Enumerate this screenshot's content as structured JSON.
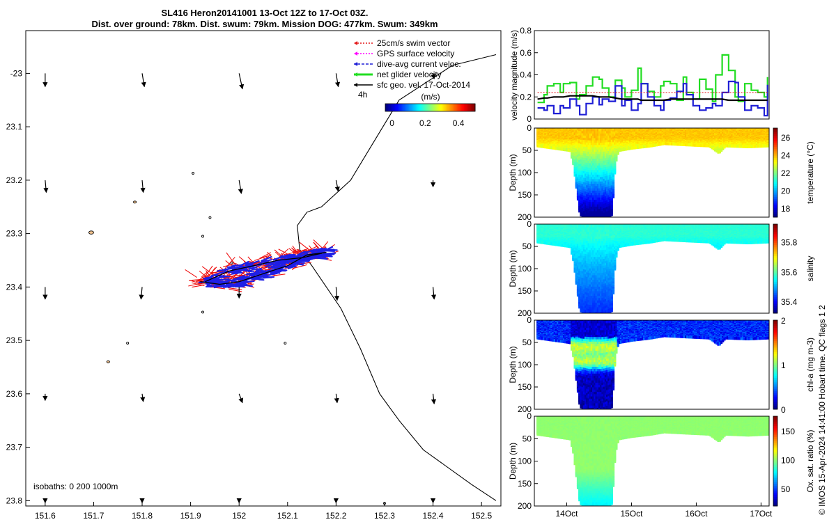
{
  "title": {
    "line1": "SL416 Heron20141001 13-Oct 12Z to 17-Oct 03Z.",
    "line2": "Dist. over ground: 78km. Dist. swum: 79km. Mission DOG: 477km. Swum: 349km"
  },
  "credit": "© IMOS 15-Apr-2024 14:41:00 Hobart time. QC flags 1  2",
  "chart_data": [
    {
      "type": "map",
      "name": "glider-track-map",
      "x_ticks": [
        "151.6",
        "151.7",
        "151.8",
        "151.9",
        "152",
        "152.1",
        "152.2",
        "152.3",
        "152.4",
        "152.5"
      ],
      "x_values": [
        151.6,
        151.7,
        151.8,
        151.9,
        152.0,
        152.1,
        152.2,
        152.3,
        152.4,
        152.5
      ],
      "y_ticks": [
        "-23",
        "23.1",
        "23.2",
        "23.3",
        "23.4",
        "23.5",
        "23.6",
        "23.7",
        "23.8"
      ],
      "y_values": [
        -23.0,
        -23.1,
        -23.2,
        -23.3,
        -23.4,
        -23.5,
        -23.6,
        -23.7,
        -23.8
      ],
      "xlim": [
        151.56,
        152.54
      ],
      "ylim": [
        -23.81,
        -22.92
      ],
      "legend": [
        {
          "label": "25cm/s swim vector",
          "color": "#e41a1c",
          "style": "dotted"
        },
        {
          "label": "GPS surface velocity",
          "color": "#ff00ff",
          "style": "dotted"
        },
        {
          "label": "dive-avg current veloc.",
          "color": "#1f1fd6",
          "style": "dashed"
        },
        {
          "label": "net glider velocity",
          "color": "#22dd22",
          "style": "solid"
        },
        {
          "label": "sfc geo. vel. 17-Oct-2014",
          "color": "#000000",
          "style": "solid"
        }
      ],
      "scale_label": "4h",
      "colorbar": {
        "label": "(m/s)",
        "ticks": [
          "0",
          "0.2",
          "0.4"
        ],
        "tick_values": [
          0,
          0.2,
          0.4
        ],
        "range": [
          -0.04,
          0.5
        ]
      },
      "isobath_label": "isobaths: 0   200  1000m",
      "isobath_1000m": [
        [
          152.53,
          -22.965
        ],
        [
          152.44,
          -22.985
        ],
        [
          152.33,
          -23.05
        ],
        [
          152.29,
          -23.11
        ],
        [
          152.23,
          -23.2
        ],
        [
          152.17,
          -23.25
        ],
        [
          152.14,
          -23.26
        ],
        [
          152.12,
          -23.285
        ],
        [
          152.125,
          -23.33
        ],
        [
          152.15,
          -23.36
        ],
        [
          152.21,
          -23.44
        ],
        [
          152.25,
          -23.515
        ],
        [
          152.29,
          -23.6
        ],
        [
          152.33,
          -23.65
        ],
        [
          152.38,
          -23.705
        ],
        [
          152.48,
          -23.77
        ],
        [
          152.53,
          -23.8
        ]
      ],
      "geo_vectors": {
        "lon": [
          151.6,
          151.8,
          152.0,
          152.2,
          152.4
        ],
        "lat": [
          -23.0,
          -23.2,
          -23.4,
          -23.6,
          -23.8
        ],
        "u": [
          [
            0,
            0.02,
            0.03,
            0.02,
            0.01
          ],
          [
            0.01,
            0.01,
            0.02,
            0.02,
            0
          ],
          [
            0,
            -0.01,
            0,
            0.01,
            0.01
          ],
          [
            0,
            0.01,
            0.03,
            0.01,
            0.01
          ],
          [
            0,
            0,
            0,
            0,
            0
          ]
        ],
        "v": [
          [
            -0.12,
            -0.12,
            -0.14,
            -0.12,
            -0.05
          ],
          [
            -0.11,
            -0.11,
            -0.12,
            -0.1,
            -0.06
          ],
          [
            -0.11,
            -0.11,
            -0.1,
            -0.12,
            -0.11
          ],
          [
            -0.06,
            -0.07,
            -0.08,
            -0.08,
            -0.09
          ],
          [
            -0.02,
            -0.02,
            -0.02,
            -0.02,
            -0.02
          ]
        ]
      },
      "track": [
        [
          151.93,
          -23.39
        ],
        [
          151.98,
          -23.37
        ],
        [
          152.03,
          -23.36
        ],
        [
          152.08,
          -23.35
        ],
        [
          152.13,
          -23.345
        ],
        [
          152.18,
          -23.335
        ],
        [
          152.14,
          -23.34
        ],
        [
          152.1,
          -23.36
        ],
        [
          152.05,
          -23.375
        ],
        [
          152.0,
          -23.39
        ],
        [
          151.96,
          -23.395
        ],
        [
          151.92,
          -23.39
        ]
      ],
      "islands": [
        {
          "lon": 151.695,
          "lat": -23.298,
          "rx": 0.005,
          "ry": 0.003,
          "fill": "#f2c28e"
        },
        {
          "lon": 151.785,
          "lat": -23.241,
          "rx": 0.003,
          "ry": 0.002,
          "fill": "#f2c28e"
        },
        {
          "lon": 151.73,
          "lat": -23.54,
          "rx": 0.003,
          "ry": 0.002,
          "fill": "#f2c28e"
        },
        {
          "lon": 151.905,
          "lat": -23.187,
          "rx": 0.0008,
          "ry": 0.0008,
          "fill": "none"
        },
        {
          "lon": 151.94,
          "lat": -23.27,
          "rx": 0.001,
          "ry": 0.0012,
          "fill": "none"
        },
        {
          "lon": 151.925,
          "lat": -23.305,
          "rx": 0.001,
          "ry": 0.001,
          "fill": "none"
        },
        {
          "lon": 151.985,
          "lat": -23.355,
          "rx": 0.002,
          "ry": 0.0015,
          "fill": "none"
        },
        {
          "lon": 151.925,
          "lat": -23.447,
          "rx": 0.002,
          "ry": 0.0015,
          "fill": "none"
        },
        {
          "lon": 151.77,
          "lat": -23.505,
          "rx": 0.001,
          "ry": 0.001,
          "fill": "none"
        },
        {
          "lon": 152.095,
          "lat": -23.505,
          "rx": 0.001,
          "ry": 0.0015,
          "fill": "none"
        },
        {
          "lon": 152.3,
          "lat": -23.805,
          "rx": 0.002,
          "ry": 0.0015,
          "fill": "none"
        }
      ]
    },
    {
      "type": "line",
      "name": "velocity-magnitude",
      "ylabel": "velocity magnitude (m/s)",
      "ylim": [
        0,
        0.8
      ],
      "y_ticks": [
        "0",
        "0.2",
        "0.4",
        "0.6",
        "0.8"
      ],
      "y_tick_values": [
        0,
        0.2,
        0.4,
        0.6,
        0.8
      ],
      "xlim": [
        13.5,
        17.125
      ],
      "x": [
        13.55,
        13.65,
        13.7,
        13.8,
        13.9,
        13.95,
        14.05,
        14.15,
        14.2,
        14.3,
        14.4,
        14.5,
        14.55,
        14.65,
        14.75,
        14.85,
        14.9,
        15.0,
        15.1,
        15.15,
        15.25,
        15.35,
        15.45,
        15.5,
        15.6,
        15.7,
        15.8,
        15.85,
        15.95,
        16.05,
        16.15,
        16.25,
        16.3,
        16.4,
        16.5,
        16.6,
        16.65,
        16.75,
        16.85,
        16.95,
        17.05,
        17.1
      ],
      "series": [
        {
          "name": "net glider velocity",
          "color": "#22dd22",
          "values": [
            0.15,
            0.22,
            0.3,
            0.32,
            0.24,
            0.32,
            0.33,
            0.18,
            0.22,
            0.3,
            0.38,
            0.36,
            0.28,
            0.2,
            0.35,
            0.28,
            0.2,
            0.26,
            0.46,
            0.32,
            0.25,
            0.2,
            0.3,
            0.34,
            0.32,
            0.17,
            0.38,
            0.24,
            0.18,
            0.36,
            0.27,
            0.16,
            0.4,
            0.58,
            0.44,
            0.2,
            0.16,
            0.32,
            0.26,
            0.24,
            0.2,
            0.38
          ]
        },
        {
          "name": "dive-avg current veloc.",
          "color": "#1f1fd6",
          "values": [
            0.1,
            0.08,
            0.12,
            0.05,
            0.12,
            0.1,
            0.18,
            0.12,
            0.04,
            0.14,
            0.2,
            0.13,
            0.18,
            0.16,
            0.3,
            0.12,
            0.17,
            0.08,
            0.14,
            0.32,
            0.2,
            0.12,
            0.08,
            0.17,
            0.19,
            0.25,
            0.32,
            0.22,
            0.12,
            0.08,
            0.1,
            0.14,
            0.12,
            0.24,
            0.34,
            0.33,
            0.2,
            0.08,
            0.12,
            0.1,
            0.03,
            0.31
          ]
        },
        {
          "name": "sfc geo. vel.",
          "color": "#000000",
          "values": [
            0.18,
            0.19,
            0.19,
            0.2,
            0.2,
            0.2,
            0.21,
            0.21,
            0.21,
            0.21,
            0.21,
            0.2,
            0.2,
            0.2,
            0.19,
            0.18,
            0.18,
            0.18,
            0.18,
            0.17,
            0.17,
            0.17,
            0.17,
            0.17,
            0.18,
            0.18,
            0.18,
            0.18,
            0.18,
            0.18,
            0.18,
            0.18,
            0.18,
            0.18,
            0.17,
            0.17,
            0.17,
            0.17,
            0.17,
            0.17,
            0.17,
            0.17
          ]
        },
        {
          "name": "25cm/s swim vector",
          "color": "#e41a1c",
          "values": [
            0.24,
            0.24,
            0.24,
            0.24,
            0.24,
            0.24,
            0.24,
            0.24,
            0.24,
            0.24,
            0.24,
            0.24,
            0.24,
            0.24,
            0.24,
            0.24,
            0.24,
            0.24,
            0.24,
            0.24,
            0.24,
            0.24,
            0.24,
            0.24,
            0.24,
            0.24,
            0.24,
            0.24,
            0.24,
            0.24,
            0.24,
            0.24,
            0.24,
            0.24,
            0.24,
            0.24,
            0.24,
            0.24,
            0.24,
            0.24,
            0.24,
            0.24
          ]
        }
      ]
    },
    {
      "type": "heatmap",
      "name": "temperature-section",
      "ylabel": "Depth (m)",
      "cbar_label": "temperature (°C)",
      "cbar_ticks": [
        "18",
        "20",
        "22",
        "24",
        "26"
      ],
      "cbar_tick_values": [
        18,
        20,
        22,
        24,
        26
      ],
      "clim": [
        17,
        27
      ],
      "ylim": [
        0,
        200
      ],
      "y_ticks": [
        "0",
        "50",
        "100",
        "150",
        "200"
      ],
      "y_tick_values": [
        0,
        50,
        100,
        150,
        200
      ],
      "surface_value": 23.8,
      "deep_value": 17.3,
      "surface_variation": 0.5,
      "x_ticks": [],
      "profile_max_depth": [
        [
          13.55,
          40
        ],
        [
          13.8,
          45
        ],
        [
          14.05,
          50
        ],
        [
          14.1,
          80
        ],
        [
          14.2,
          190
        ],
        [
          14.35,
          200
        ],
        [
          14.55,
          200
        ],
        [
          14.7,
          190
        ],
        [
          14.75,
          80
        ],
        [
          14.8,
          50
        ],
        [
          15.0,
          45
        ],
        [
          15.3,
          40
        ],
        [
          15.5,
          35
        ],
        [
          15.9,
          38
        ],
        [
          16.2,
          40
        ],
        [
          16.35,
          55
        ],
        [
          16.45,
          40
        ],
        [
          16.8,
          42
        ],
        [
          17.1,
          40
        ]
      ]
    },
    {
      "type": "heatmap",
      "name": "salinity-section",
      "ylabel": "Depth (m)",
      "cbar_label": "salinity",
      "cbar_ticks": [
        "35.4",
        "35.6",
        "35.8"
      ],
      "cbar_tick_values": [
        35.4,
        35.6,
        35.8
      ],
      "clim": [
        35.32,
        35.92
      ],
      "ylim": [
        0,
        200
      ],
      "y_ticks": [
        "0",
        "50",
        "100",
        "150",
        "200"
      ],
      "y_tick_values": [
        0,
        50,
        100,
        150,
        200
      ],
      "surface_value": 35.57,
      "deep_value": 35.42,
      "surface_variation": 0.02,
      "x_ticks": [],
      "profile_max_depth": [
        [
          13.55,
          40
        ],
        [
          13.8,
          45
        ],
        [
          14.05,
          50
        ],
        [
          14.1,
          80
        ],
        [
          14.2,
          190
        ],
        [
          14.35,
          200
        ],
        [
          14.55,
          200
        ],
        [
          14.7,
          190
        ],
        [
          14.75,
          80
        ],
        [
          14.8,
          50
        ],
        [
          15.0,
          45
        ],
        [
          15.3,
          40
        ],
        [
          15.5,
          35
        ],
        [
          15.9,
          38
        ],
        [
          16.2,
          40
        ],
        [
          16.35,
          55
        ],
        [
          16.45,
          40
        ],
        [
          16.8,
          42
        ],
        [
          17.1,
          40
        ]
      ]
    },
    {
      "type": "heatmap",
      "name": "chla-section",
      "ylabel": "Depth (m)",
      "cbar_label": "chl-a (mg m-3)",
      "cbar_ticks": [
        "0",
        "1",
        "2"
      ],
      "cbar_tick_values": [
        0,
        1,
        2
      ],
      "clim": [
        0,
        2
      ],
      "ylim": [
        0,
        200
      ],
      "y_ticks": [
        "0",
        "50",
        "100",
        "150",
        "200"
      ],
      "y_tick_values": [
        0,
        50,
        100,
        150,
        200
      ],
      "surface_value": 0.2,
      "deep_value": 0.15,
      "surface_variation": 0.25,
      "x_ticks": [],
      "profile_max_depth": [
        [
          13.55,
          40
        ],
        [
          13.8,
          45
        ],
        [
          14.05,
          50
        ],
        [
          14.1,
          80
        ],
        [
          14.2,
          190
        ],
        [
          14.35,
          200
        ],
        [
          14.55,
          200
        ],
        [
          14.7,
          190
        ],
        [
          14.75,
          80
        ],
        [
          14.8,
          50
        ],
        [
          15.0,
          45
        ],
        [
          15.3,
          40
        ],
        [
          15.5,
          35
        ],
        [
          15.9,
          38
        ],
        [
          16.2,
          40
        ],
        [
          16.35,
          55
        ],
        [
          16.45,
          40
        ],
        [
          16.8,
          42
        ],
        [
          17.1,
          40
        ]
      ]
    },
    {
      "type": "heatmap",
      "name": "oxygen-section",
      "ylabel": "Depth (m)",
      "cbar_label": "Ox. sat. ratio (%)",
      "cbar_ticks": [
        "50",
        "100",
        "150"
      ],
      "cbar_tick_values": [
        50,
        100,
        150
      ],
      "clim": [
        20,
        175
      ],
      "ylim": [
        0,
        200
      ],
      "y_ticks": [
        "0",
        "50",
        "100",
        "150",
        "200"
      ],
      "y_tick_values": [
        0,
        50,
        100,
        150,
        200
      ],
      "surface_value": 100,
      "deep_value": 78,
      "surface_variation": 3,
      "x_ticks": [
        "14Oct",
        "15Oct",
        "16Oct",
        "17Oct"
      ],
      "x_tick_values": [
        14,
        15,
        16,
        17
      ],
      "profile_max_depth": [
        [
          13.55,
          40
        ],
        [
          13.8,
          45
        ],
        [
          14.05,
          50
        ],
        [
          14.1,
          80
        ],
        [
          14.2,
          190
        ],
        [
          14.35,
          200
        ],
        [
          14.55,
          200
        ],
        [
          14.7,
          190
        ],
        [
          14.75,
          80
        ],
        [
          14.8,
          50
        ],
        [
          15.0,
          45
        ],
        [
          15.3,
          40
        ],
        [
          15.5,
          35
        ],
        [
          15.9,
          38
        ],
        [
          16.2,
          40
        ],
        [
          16.35,
          55
        ],
        [
          16.45,
          40
        ],
        [
          16.8,
          42
        ],
        [
          17.1,
          40
        ]
      ]
    }
  ]
}
